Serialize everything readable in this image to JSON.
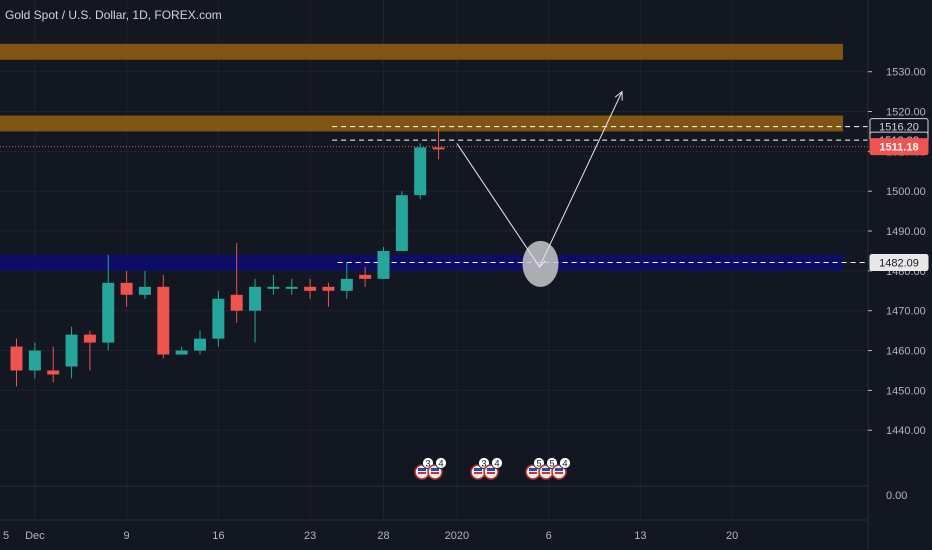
{
  "header": {
    "title": "Gold Spot / U.S. Dollar, 1D, FOREX.com"
  },
  "colors": {
    "background": "#131722",
    "grid": "#1e222d",
    "up": "#26a69a",
    "down": "#ef5350",
    "resistance_zone": "#8a5a12",
    "support_zone": "#0d0d6e",
    "last_price_line": "#ef5350",
    "dashed_level": "#ffffff",
    "arrow": "#e6e6e6",
    "circle": "#c8c8c8"
  },
  "chart_data": {
    "type": "candlestick",
    "title": "Gold Spot / U.S. Dollar, 1D, FOREX.com",
    "price_axis": {
      "ylim": [
        1426,
        1548
      ],
      "ticks": [
        1440,
        1450,
        1460,
        1470,
        1480,
        1490,
        1500,
        1510,
        1520,
        1530
      ],
      "tick_labels": [
        "1440.00",
        "1450.00",
        "1460.00",
        "1470.00",
        "1480.00",
        "1490.00",
        "1500.00",
        "1510.00",
        "1520.00",
        "1530.00"
      ]
    },
    "indicator_pane": {
      "tick_label": "0.00"
    },
    "date_axis": {
      "labels": [
        {
          "label": "5",
          "index": -4
        },
        {
          "label": "Dec",
          "index": 1
        },
        {
          "label": "9",
          "index": 6
        },
        {
          "label": "16",
          "index": 11
        },
        {
          "label": "23",
          "index": 16
        },
        {
          "label": "28",
          "index": 20
        },
        {
          "label": "2020",
          "index": 24
        },
        {
          "label": "6",
          "index": 29
        },
        {
          "label": "13",
          "index": 34
        },
        {
          "label": "20",
          "index": 39
        }
      ]
    },
    "candles": [
      {
        "date": "Nov 26",
        "open": 1461,
        "high": 1463,
        "low": 1451,
        "close": 1455
      },
      {
        "date": "Nov 27",
        "open": 1455,
        "high": 1462,
        "low": 1453,
        "close": 1460
      },
      {
        "date": "Nov 28",
        "open": 1455,
        "high": 1461,
        "low": 1452,
        "close": 1454
      },
      {
        "date": "Nov 29",
        "open": 1456,
        "high": 1466,
        "low": 1453,
        "close": 1464
      },
      {
        "date": "Dec 2",
        "open": 1464,
        "high": 1465,
        "low": 1455,
        "close": 1462
      },
      {
        "date": "Dec 3",
        "open": 1462,
        "high": 1484,
        "low": 1460,
        "close": 1477
      },
      {
        "date": "Dec 4",
        "open": 1477,
        "high": 1480,
        "low": 1471,
        "close": 1474
      },
      {
        "date": "Dec 5",
        "open": 1474,
        "high": 1480,
        "low": 1473,
        "close": 1476
      },
      {
        "date": "Dec 6",
        "open": 1476,
        "high": 1479,
        "low": 1458,
        "close": 1459
      },
      {
        "date": "Dec 9",
        "open": 1459,
        "high": 1461,
        "low": 1459,
        "close": 1460
      },
      {
        "date": "Dec 10",
        "open": 1460,
        "high": 1465,
        "low": 1459,
        "close": 1463
      },
      {
        "date": "Dec 11",
        "open": 1463,
        "high": 1475,
        "low": 1461,
        "close": 1473
      },
      {
        "date": "Dec 12",
        "open": 1474,
        "high": 1487,
        "low": 1467,
        "close": 1470
      },
      {
        "date": "Dec 13",
        "open": 1470,
        "high": 1478,
        "low": 1462,
        "close": 1476
      },
      {
        "date": "Dec 16",
        "open": 1475.5,
        "high": 1479,
        "low": 1474,
        "close": 1476
      },
      {
        "date": "Dec 17",
        "open": 1475.5,
        "high": 1478,
        "low": 1474,
        "close": 1476
      },
      {
        "date": "Dec 18",
        "open": 1476,
        "high": 1478,
        "low": 1473,
        "close": 1475
      },
      {
        "date": "Dec 19",
        "open": 1476,
        "high": 1477,
        "low": 1471,
        "close": 1475
      },
      {
        "date": "Dec 20",
        "open": 1475,
        "high": 1482,
        "low": 1473,
        "close": 1478
      },
      {
        "date": "Dec 23",
        "open": 1479,
        "high": 1481,
        "low": 1476,
        "close": 1478
      },
      {
        "date": "Dec 24",
        "open": 1478,
        "high": 1486,
        "low": 1478,
        "close": 1485
      },
      {
        "date": "Dec 25",
        "open": 1485,
        "high": 1500,
        "low": 1485,
        "close": 1499
      },
      {
        "date": "Dec 26",
        "open": 1499,
        "high": 1512,
        "low": 1498,
        "close": 1511
      },
      {
        "date": "Dec 27",
        "open": 1511,
        "high": 1516,
        "low": 1508,
        "close": 1510.5
      }
    ],
    "levels": [
      {
        "price": 1516.2,
        "label": "1516.20",
        "style": "dashed"
      },
      {
        "price": 1512.82,
        "label": "1512.82",
        "style": "dashed"
      },
      {
        "price": 1511.18,
        "label": "1511.18",
        "style": "last-price"
      },
      {
        "price": 1482.09,
        "label": "1482.09",
        "style": "dashed"
      }
    ],
    "zones": [
      {
        "name": "resistance-zone-top",
        "from": 1533,
        "to": 1537
      },
      {
        "name": "resistance-zone",
        "from": 1515,
        "to": 1519
      },
      {
        "name": "support-zone",
        "from": 1480,
        "to": 1484
      }
    ],
    "projection_path": [
      {
        "index": 24,
        "price": 1512
      },
      {
        "index": 28.5,
        "price": 1481
      },
      {
        "index": 33,
        "price": 1525
      }
    ],
    "event_markers": [
      {
        "group": 1,
        "counts": [
          "3",
          "4"
        ]
      },
      {
        "group": 2,
        "counts": [
          "3",
          "4"
        ]
      },
      {
        "group": 3,
        "counts": [
          "5",
          "5",
          "4"
        ]
      }
    ]
  }
}
